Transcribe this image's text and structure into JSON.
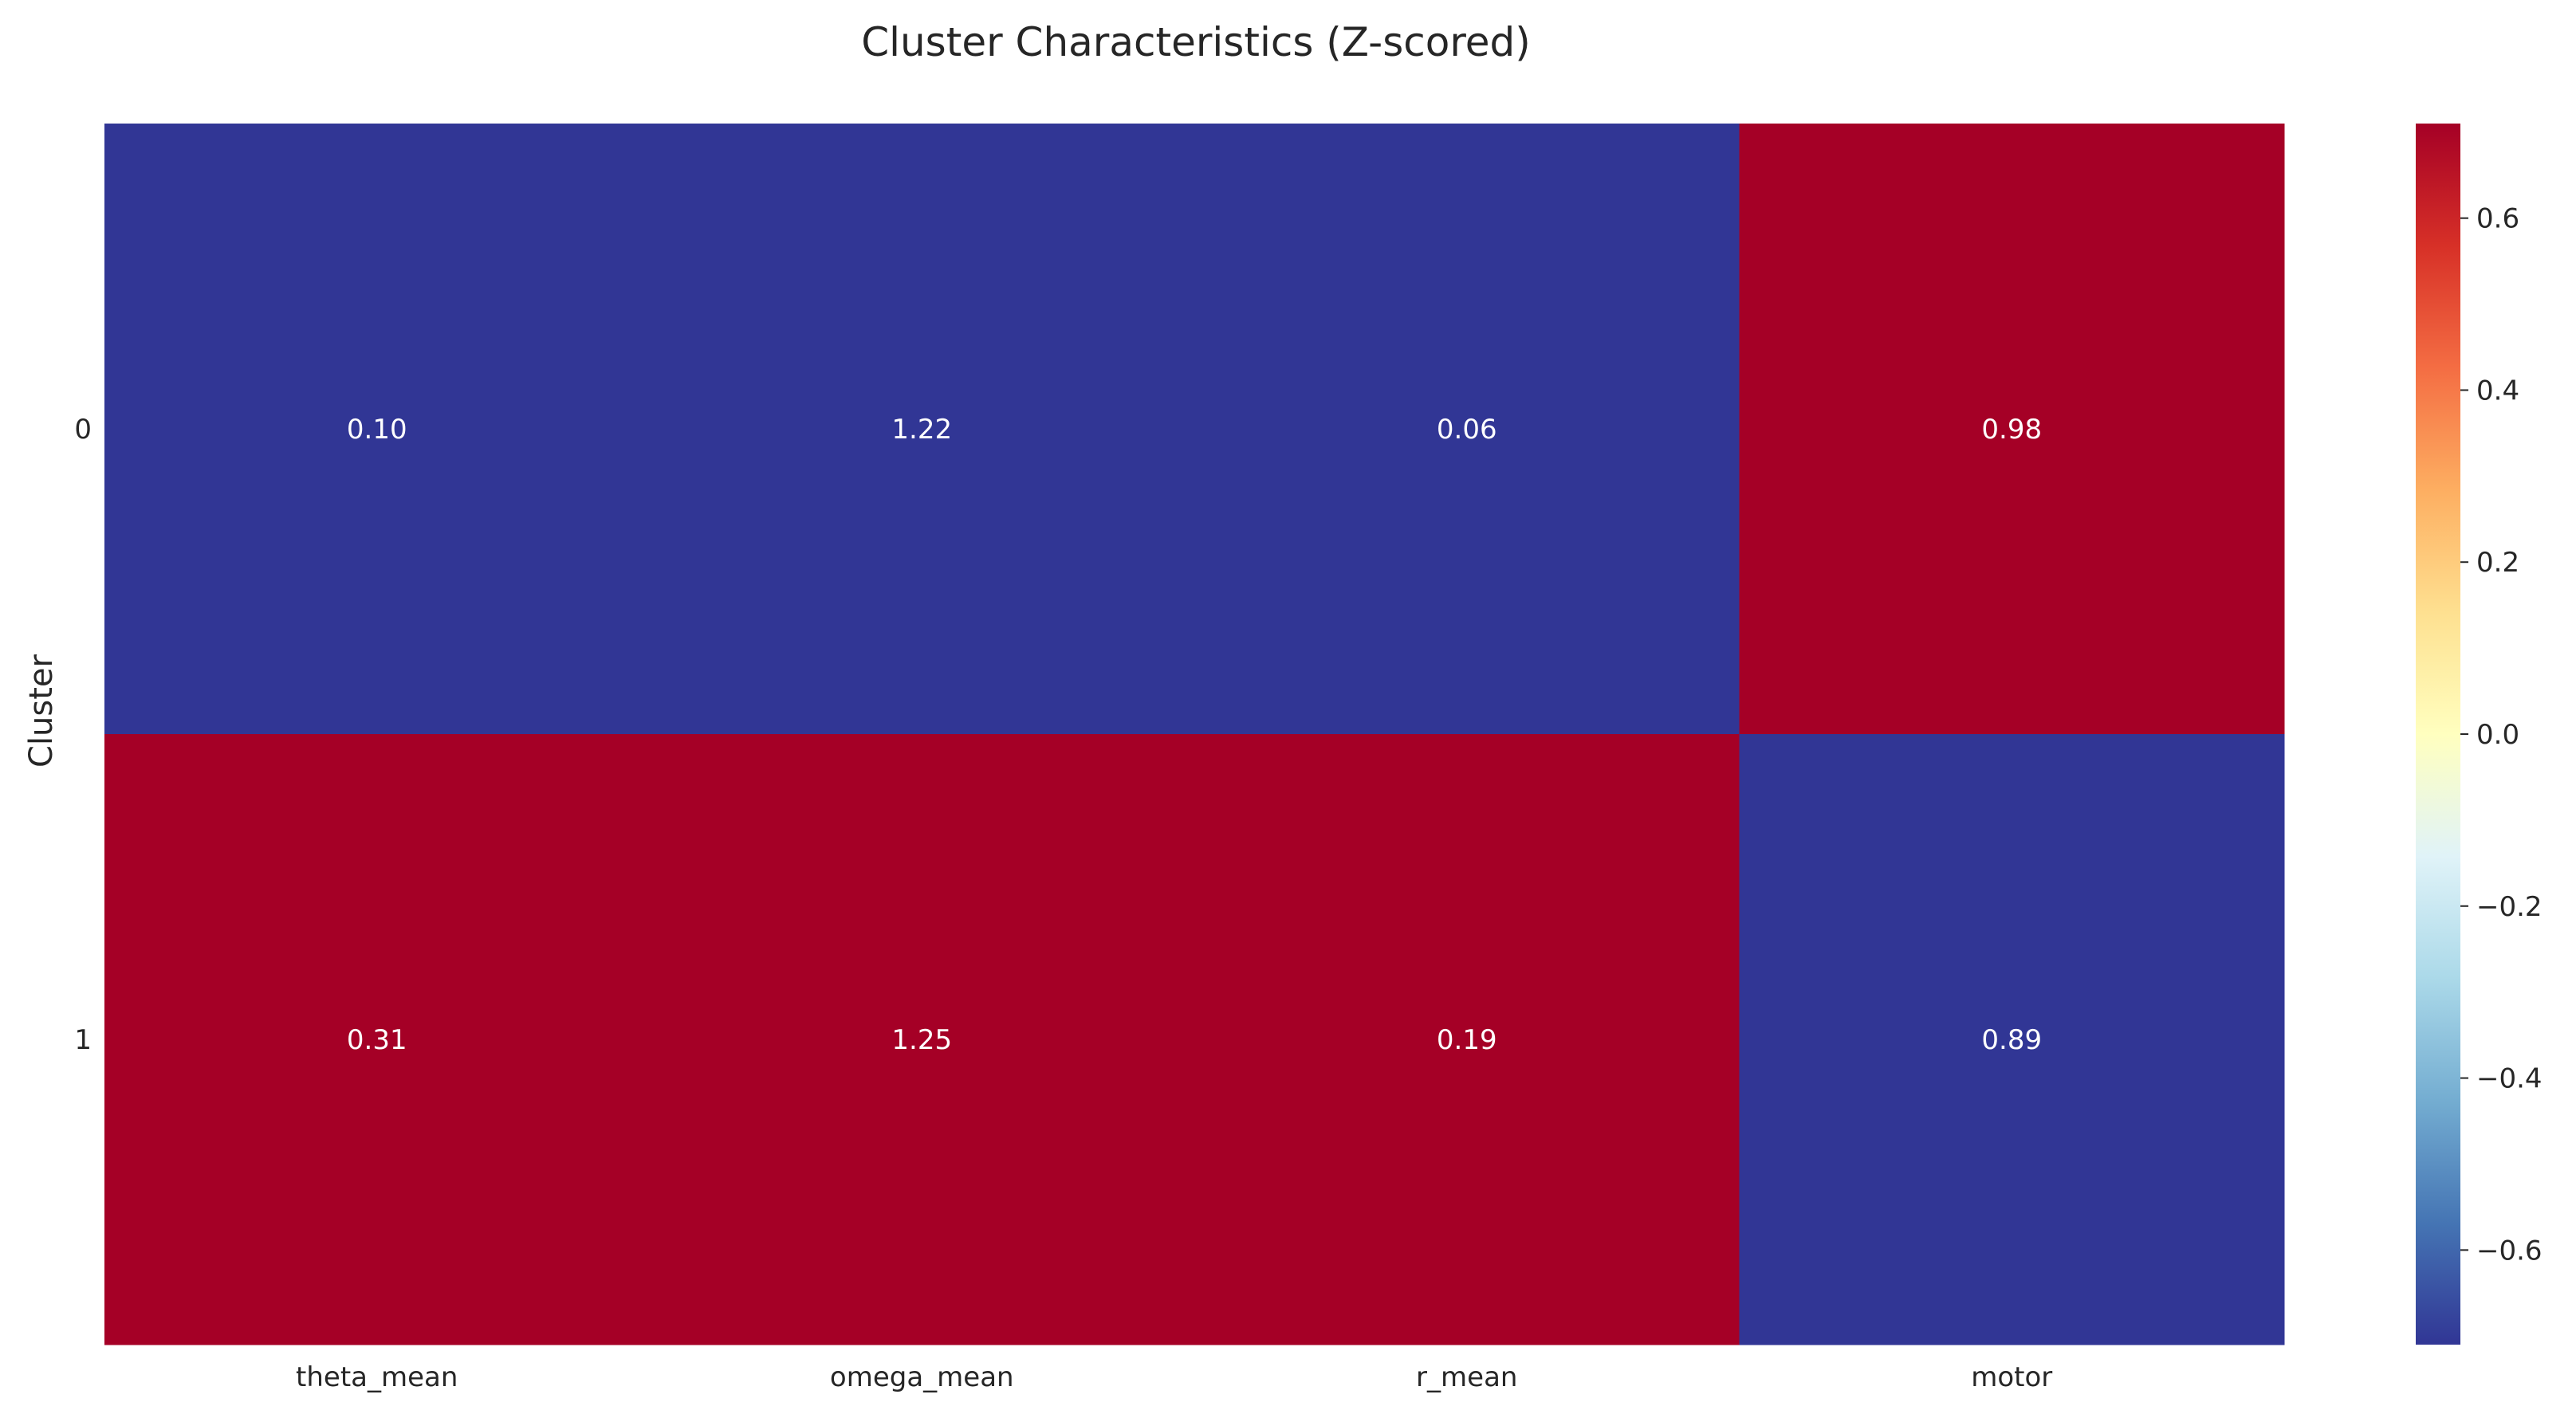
{
  "chart_data": {
    "type": "heatmap",
    "title": "Cluster Characteristics (Z-scored)",
    "xlabel": "",
    "ylabel": "Cluster",
    "x_categories": [
      "theta_mean",
      "omega_mean",
      "r_mean",
      "motor"
    ],
    "y_categories": [
      "0",
      "1"
    ],
    "cell_labels": [
      [
        "0.10",
        "1.22",
        "0.06",
        "0.98"
      ],
      [
        "0.31",
        "1.25",
        "0.19",
        "0.89"
      ]
    ],
    "values": [
      [
        -0.71,
        -0.71,
        -0.71,
        0.71
      ],
      [
        0.71,
        0.71,
        0.71,
        -0.71
      ]
    ],
    "colormap": "RdYlBu_r",
    "colorbar": {
      "range": [
        -0.71,
        0.71
      ],
      "ticks": [
        0.6,
        0.4,
        0.2,
        0.0,
        -0.2,
        -0.4,
        -0.6
      ],
      "tick_labels": [
        "0.6",
        "0.4",
        "0.2",
        "0.0",
        "−0.2",
        "−0.4",
        "−0.6"
      ]
    },
    "colors": {
      "low": "#313695",
      "high": "#a50026",
      "text": "#262626",
      "cell_text": "#ffffff"
    },
    "grid": false,
    "legend": "colorbar-right"
  }
}
